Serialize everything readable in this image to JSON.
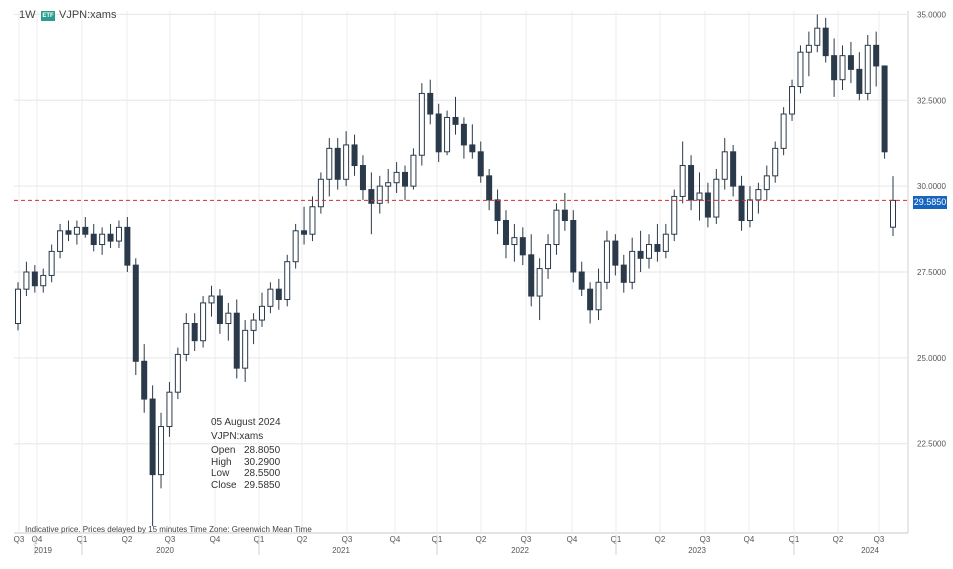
{
  "header": {
    "interval": "1W",
    "etf_badge": "ETF",
    "symbol": "VJPN:xams"
  },
  "tooltip": {
    "date": "05 August 2024",
    "symbol": "VJPN:xams",
    "rows": [
      {
        "label": "Open",
        "value": "28.8050"
      },
      {
        "label": "High",
        "value": "30.2900"
      },
      {
        "label": "Low",
        "value": "28.5500"
      },
      {
        "label": "Close",
        "value": "29.5850"
      }
    ]
  },
  "footer_note": "Indicative price. Prices delayed by 15 minutes    Time Zone: Greenwich Mean Time",
  "last_price_label": "29.5850",
  "colors": {
    "candle": "#2b3a4a",
    "last_price_line": "#d32f2f",
    "price_tag": "#1565c0",
    "etf_badge": "#2a9d8f"
  },
  "chart_data": {
    "type": "candlestick",
    "ylim": [
      19.9,
      35.1
    ],
    "y_ticks": [
      "35.0000",
      "32.5000",
      "30.0000",
      "27.5000",
      "25.0000",
      "22.5000"
    ],
    "y_tick_values": [
      35.0,
      32.5,
      30.0,
      27.5,
      25.0,
      22.5
    ],
    "quarter_labels": [
      "Q3",
      "Q4",
      "Q1",
      "Q2",
      "Q3",
      "Q4",
      "Q1",
      "Q2",
      "Q3",
      "Q4",
      "Q1",
      "Q2",
      "Q3",
      "Q4",
      "Q1",
      "Q2",
      "Q3",
      "Q4",
      "Q1",
      "Q2",
      "Q3"
    ],
    "year_labels": [
      "2019",
      "2020",
      "2021",
      "2022",
      "2023",
      "2024"
    ],
    "last_price": 29.585,
    "series": [
      {
        "ohlc": [
          [
            26.0,
            27.2,
            25.8,
            27.0
          ],
          [
            27.0,
            27.8,
            26.8,
            27.5
          ],
          [
            27.5,
            27.7,
            26.9,
            27.1
          ],
          [
            27.1,
            27.6,
            26.9,
            27.4
          ],
          [
            27.4,
            28.3,
            27.2,
            28.1
          ],
          [
            28.1,
            28.9,
            27.9,
            28.7
          ],
          [
            28.7,
            29.0,
            28.4,
            28.6
          ],
          [
            28.6,
            29.0,
            28.3,
            28.8
          ],
          [
            28.8,
            29.1,
            28.5,
            28.6
          ],
          [
            28.6,
            28.9,
            28.1,
            28.3
          ],
          [
            28.3,
            28.8,
            28.0,
            28.6
          ],
          [
            28.6,
            28.9,
            28.2,
            28.4
          ],
          [
            28.4,
            29.0,
            28.2,
            28.8
          ],
          [
            28.8,
            29.1,
            27.5,
            27.7
          ],
          [
            27.7,
            27.9,
            24.5,
            24.9
          ],
          [
            24.9,
            25.4,
            23.4,
            23.8
          ],
          [
            23.8,
            24.2,
            20.1,
            21.6
          ],
          [
            21.6,
            23.4,
            21.2,
            23.0
          ],
          [
            23.0,
            24.3,
            22.7,
            24.0
          ],
          [
            24.0,
            25.3,
            23.8,
            25.1
          ],
          [
            25.1,
            26.3,
            24.9,
            26.0
          ],
          [
            26.0,
            26.3,
            25.2,
            25.5
          ],
          [
            25.5,
            26.8,
            25.3,
            26.6
          ],
          [
            26.6,
            27.1,
            26.2,
            26.8
          ],
          [
            26.8,
            27.0,
            25.7,
            26.0
          ],
          [
            26.0,
            26.6,
            25.5,
            26.3
          ],
          [
            26.3,
            26.7,
            24.4,
            24.7
          ],
          [
            24.7,
            26.1,
            24.3,
            25.8
          ],
          [
            25.8,
            26.3,
            25.4,
            26.1
          ],
          [
            26.1,
            26.9,
            25.9,
            26.5
          ],
          [
            26.5,
            27.2,
            26.3,
            27.0
          ],
          [
            27.0,
            27.3,
            26.4,
            26.7
          ],
          [
            26.7,
            28.0,
            26.5,
            27.8
          ],
          [
            27.8,
            28.9,
            27.6,
            28.7
          ],
          [
            28.7,
            29.4,
            28.3,
            28.6
          ],
          [
            28.6,
            29.7,
            28.4,
            29.4
          ],
          [
            29.4,
            30.4,
            29.2,
            30.2
          ],
          [
            30.2,
            31.4,
            29.7,
            31.1
          ],
          [
            31.1,
            31.4,
            29.9,
            30.2
          ],
          [
            30.2,
            31.6,
            30.0,
            31.2
          ],
          [
            31.2,
            31.5,
            30.3,
            30.6
          ],
          [
            30.6,
            30.9,
            29.6,
            29.9
          ],
          [
            29.9,
            30.4,
            28.6,
            29.5
          ],
          [
            29.5,
            30.3,
            29.2,
            30.0
          ],
          [
            30.0,
            30.5,
            29.5,
            30.1
          ],
          [
            30.1,
            30.7,
            29.8,
            30.4
          ],
          [
            30.4,
            30.6,
            29.6,
            30.0
          ],
          [
            30.0,
            31.1,
            29.9,
            30.9
          ],
          [
            30.9,
            33.0,
            30.6,
            32.7
          ],
          [
            32.7,
            33.1,
            31.8,
            32.1
          ],
          [
            32.1,
            32.4,
            30.7,
            31.0
          ],
          [
            31.0,
            32.2,
            30.9,
            32.0
          ],
          [
            32.0,
            32.6,
            31.5,
            31.8
          ],
          [
            31.8,
            32.0,
            30.8,
            31.2
          ],
          [
            31.2,
            31.8,
            30.8,
            31.0
          ],
          [
            31.0,
            31.3,
            30.1,
            30.3
          ],
          [
            30.3,
            30.5,
            29.3,
            29.6
          ],
          [
            29.6,
            29.9,
            28.6,
            29.0
          ],
          [
            29.0,
            29.3,
            27.9,
            28.3
          ],
          [
            28.3,
            28.9,
            27.8,
            28.5
          ],
          [
            28.5,
            28.8,
            27.7,
            28.0
          ],
          [
            28.0,
            28.6,
            26.5,
            26.8
          ],
          [
            26.8,
            27.9,
            26.1,
            27.6
          ],
          [
            27.6,
            28.6,
            27.3,
            28.3
          ],
          [
            28.3,
            29.5,
            28.0,
            29.3
          ],
          [
            29.3,
            29.8,
            28.7,
            29.0
          ],
          [
            29.0,
            29.3,
            27.2,
            27.5
          ],
          [
            27.5,
            27.8,
            26.8,
            27.0
          ],
          [
            27.0,
            27.2,
            26.0,
            26.4
          ],
          [
            26.4,
            27.6,
            26.1,
            27.2
          ],
          [
            27.2,
            28.7,
            27.0,
            28.4
          ],
          [
            28.4,
            28.6,
            27.4,
            27.7
          ],
          [
            27.7,
            28.0,
            26.9,
            27.2
          ],
          [
            27.2,
            28.5,
            27.0,
            28.1
          ],
          [
            28.1,
            28.7,
            27.5,
            27.9
          ],
          [
            27.9,
            28.6,
            27.6,
            28.3
          ],
          [
            28.3,
            28.9,
            27.8,
            28.1
          ],
          [
            28.1,
            28.9,
            27.9,
            28.6
          ],
          [
            28.6,
            29.9,
            28.4,
            29.7
          ],
          [
            29.7,
            31.3,
            29.5,
            30.6
          ],
          [
            30.6,
            30.9,
            29.3,
            29.6
          ],
          [
            29.6,
            30.4,
            29.0,
            29.8
          ],
          [
            29.8,
            30.1,
            28.8,
            29.1
          ],
          [
            29.1,
            30.5,
            28.9,
            30.2
          ],
          [
            30.2,
            31.4,
            29.9,
            31.0
          ],
          [
            31.0,
            31.2,
            29.7,
            30.0
          ],
          [
            30.0,
            30.3,
            28.7,
            29.0
          ],
          [
            29.0,
            30.0,
            28.8,
            29.6
          ],
          [
            29.6,
            30.1,
            29.2,
            29.9
          ],
          [
            29.9,
            30.6,
            29.6,
            30.3
          ],
          [
            30.3,
            31.3,
            30.1,
            31.1
          ],
          [
            31.1,
            32.3,
            30.9,
            32.1
          ],
          [
            32.1,
            33.1,
            31.9,
            32.9
          ],
          [
            32.9,
            34.1,
            32.7,
            33.9
          ],
          [
            33.9,
            34.5,
            33.2,
            34.1
          ],
          [
            34.1,
            35.0,
            33.9,
            34.6
          ],
          [
            34.6,
            34.9,
            33.6,
            33.8
          ],
          [
            33.8,
            34.3,
            32.6,
            33.1
          ],
          [
            33.1,
            34.1,
            32.8,
            33.8
          ],
          [
            33.8,
            34.2,
            33.0,
            33.4
          ],
          [
            33.4,
            33.9,
            32.5,
            32.7
          ],
          [
            32.7,
            34.4,
            32.5,
            34.1
          ],
          [
            34.1,
            34.5,
            32.9,
            33.5
          ],
          [
            33.5,
            33.5,
            30.8,
            31.0
          ],
          [
            28.805,
            30.29,
            28.55,
            29.585
          ]
        ]
      }
    ]
  }
}
